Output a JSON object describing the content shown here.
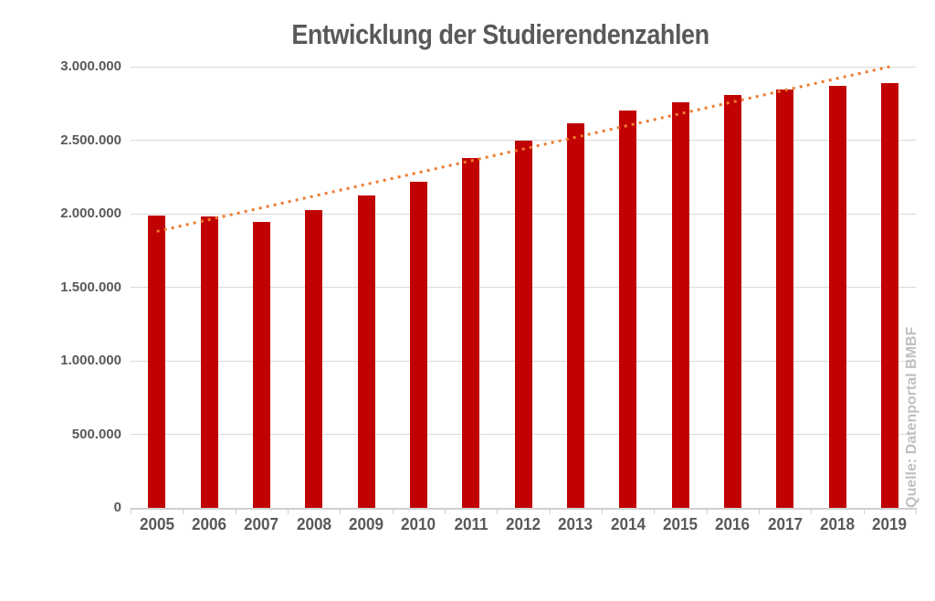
{
  "chart_data": {
    "type": "bar",
    "title": "Entwicklung der Studierendenzahlen",
    "source_note": "Quelle: Datenportal BMBF",
    "categories": [
      "2005",
      "2006",
      "2007",
      "2008",
      "2009",
      "2010",
      "2011",
      "2012",
      "2013",
      "2014",
      "2015",
      "2016",
      "2017",
      "2018",
      "2019"
    ],
    "values": [
      1986106,
      1979445,
      1941763,
      2025742,
      2121190,
      2217294,
      2380974,
      2499409,
      2616881,
      2698910,
      2757799,
      2807010,
      2844978,
      2868222,
      2891049
    ],
    "ylim": [
      0,
      3000000
    ],
    "yticks": {
      "values": [
        0,
        500000,
        1000000,
        1500000,
        2000000,
        2500000,
        3000000
      ],
      "labels": [
        "0",
        "500.000",
        "1.000.000",
        "1.500.000",
        "2.000.000",
        "2.500.000",
        "3.000.000"
      ]
    },
    "trendline": {
      "type": "linear",
      "style": "dotted",
      "start_value": 1880000,
      "end_value": 3000000
    },
    "legend": "none",
    "grid": "horizontal",
    "colors": {
      "bar": "#C10202",
      "trendline": "#ED7D31",
      "title_text": "#595959",
      "axis_text": "#595959",
      "gridline": "#D9D9D9",
      "axis_line": "#CFCFCF",
      "source_text": "#BFBFBF",
      "background": "#FFFFFF"
    }
  }
}
